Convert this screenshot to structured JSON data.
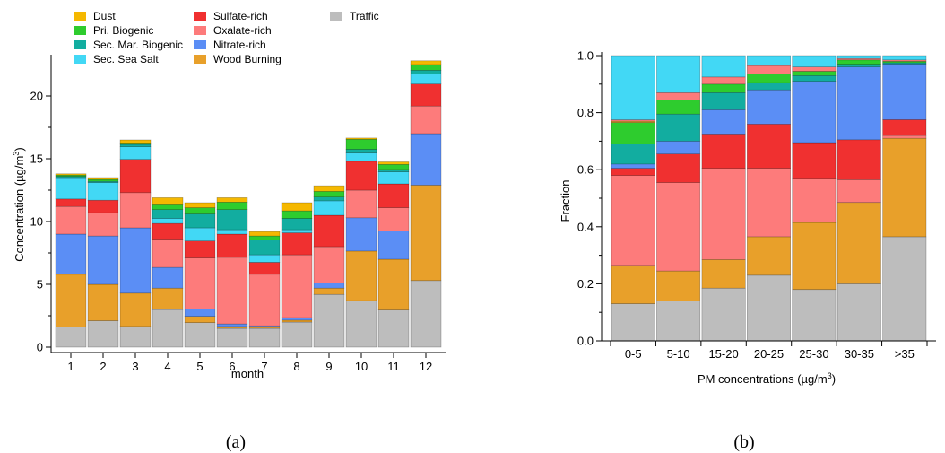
{
  "components": [
    {
      "name": "Traffic",
      "color": "#bdbdbd"
    },
    {
      "name": "Wood Burning",
      "color": "#e8a02a"
    },
    {
      "name": "Nitrate-rich",
      "color": "#5b8ef5"
    },
    {
      "name": "Oxalate-rich",
      "color": "#fd7b7b"
    },
    {
      "name": "Sulfate-rich",
      "color": "#f03030"
    },
    {
      "name": "Sec. Sea Salt",
      "color": "#42d8f5"
    },
    {
      "name": "Sec. Mar. Biogenic",
      "color": "#12ada0"
    },
    {
      "name": "Pri. Biogenic",
      "color": "#2ecc2e"
    },
    {
      "name": "Dust",
      "color": "#f5b800"
    }
  ],
  "legend": {
    "columns": [
      [
        "Dust",
        "Pri. Biogenic",
        "Sec. Mar. Biogenic",
        "Sec. Sea Salt"
      ],
      [
        "Sulfate-rich",
        "Oxalate-rich",
        "Nitrate-rich",
        "Wood Burning"
      ],
      [
        "Traffic"
      ]
    ]
  },
  "panels": {
    "a": {
      "label": "(a)"
    },
    "b": {
      "label": "(b)"
    }
  },
  "chart_data": [
    {
      "type": "bar",
      "stacked": true,
      "panel": "(a)",
      "xlabel": "month",
      "ylabel": "Concentration (µg/m3)",
      "ylim": [
        0,
        23
      ],
      "yticks": [
        0,
        5,
        10,
        15,
        20
      ],
      "categories": [
        "1",
        "2",
        "3",
        "4",
        "5",
        "6",
        "7",
        "8",
        "9",
        "10",
        "11",
        "12"
      ],
      "series": [
        {
          "name": "Traffic",
          "values": [
            1.6,
            2.1,
            1.65,
            3.0,
            1.95,
            1.5,
            1.5,
            2.0,
            4.2,
            3.7,
            2.95,
            5.3
          ]
        },
        {
          "name": "Wood Burning",
          "values": [
            4.2,
            2.9,
            2.65,
            1.7,
            0.5,
            0.15,
            0.1,
            0.15,
            0.5,
            3.95,
            4.05,
            7.6
          ]
        },
        {
          "name": "Nitrate-rich",
          "values": [
            3.2,
            3.85,
            5.2,
            1.65,
            0.6,
            0.2,
            0.1,
            0.2,
            0.4,
            2.65,
            2.25,
            4.1
          ]
        },
        {
          "name": "Oxalate-rich",
          "values": [
            2.2,
            1.85,
            2.8,
            2.25,
            4.05,
            5.3,
            4.1,
            5.0,
            2.9,
            2.2,
            1.85,
            2.2
          ]
        },
        {
          "name": "Sulfate-rich",
          "values": [
            0.6,
            1.0,
            2.65,
            1.25,
            1.35,
            1.85,
            0.95,
            1.75,
            2.5,
            2.3,
            1.9,
            1.75
          ]
        },
        {
          "name": "Sec. Sea Salt",
          "values": [
            1.7,
            1.4,
            1.0,
            0.4,
            1.05,
            0.35,
            0.6,
            0.25,
            1.15,
            0.65,
            0.95,
            0.8
          ]
        },
        {
          "name": "Sec. Mar. Biogenic",
          "values": [
            0.1,
            0.1,
            0.2,
            0.7,
            1.1,
            1.6,
            1.2,
            0.9,
            0.3,
            0.3,
            0.2,
            0.3
          ]
        },
        {
          "name": "Pri. Biogenic",
          "values": [
            0.1,
            0.15,
            0.1,
            0.45,
            0.5,
            0.6,
            0.3,
            0.6,
            0.45,
            0.8,
            0.4,
            0.45
          ]
        },
        {
          "name": "Dust",
          "values": [
            0.1,
            0.15,
            0.25,
            0.5,
            0.4,
            0.35,
            0.35,
            0.65,
            0.45,
            0.1,
            0.2,
            0.3
          ]
        }
      ]
    },
    {
      "type": "bar",
      "stacked": true,
      "panel": "(b)",
      "xlabel": "PM concentrations (µg/m3)",
      "ylabel": "Fraction",
      "ylim": [
        0,
        1.0
      ],
      "yticks": [
        0.0,
        0.2,
        0.4,
        0.6,
        0.8,
        1.0
      ],
      "categories": [
        "0-5",
        "5-10",
        "15-20",
        "20-25",
        "25-30",
        "30-35",
        ">35"
      ],
      "series": [
        {
          "name": "Traffic",
          "values": [
            0.13,
            0.14,
            0.185,
            0.23,
            0.18,
            0.2,
            0.365
          ]
        },
        {
          "name": "Wood Burning",
          "values": [
            0.135,
            0.105,
            0.1,
            0.135,
            0.235,
            0.285,
            0.345
          ]
        },
        {
          "name": "Nitrate-rich",
          "values": [
            0.0,
            0.0,
            0.0,
            0.0,
            0.0,
            0.0,
            0.0
          ]
        },
        {
          "name": "Oxalate-rich",
          "values": [
            0.315,
            0.31,
            0.32,
            0.24,
            0.155,
            0.08,
            0.01
          ]
        },
        {
          "name": "Sulfate-rich",
          "values": [
            0.025,
            0.1,
            0.12,
            0.155,
            0.125,
            0.14,
            0.055
          ]
        },
        {
          "name": "Nitrate-rich",
          "values": [
            0.015,
            0.045,
            0.085,
            0.12,
            0.215,
            0.255,
            0.195
          ]
        },
        {
          "name": "Sec. Mar. Biogenic",
          "values": [
            0.07,
            0.095,
            0.06,
            0.025,
            0.02,
            0.01,
            0.005
          ]
        },
        {
          "name": "Pri. Biogenic",
          "values": [
            0.075,
            0.05,
            0.03,
            0.03,
            0.015,
            0.015,
            0.005
          ]
        },
        {
          "name": "Wood Burning",
          "values": [
            0.005,
            0.0,
            0.0,
            0.0,
            0.0,
            0.0,
            0.0
          ]
        },
        {
          "name": "Oxalate-rich",
          "values": [
            0.005,
            0.025,
            0.025,
            0.03,
            0.015,
            0.005,
            0.005
          ]
        },
        {
          "name": "Sec. Sea Salt",
          "values": [
            0.225,
            0.13,
            0.075,
            0.035,
            0.04,
            0.01,
            0.015
          ]
        }
      ]
    }
  ]
}
